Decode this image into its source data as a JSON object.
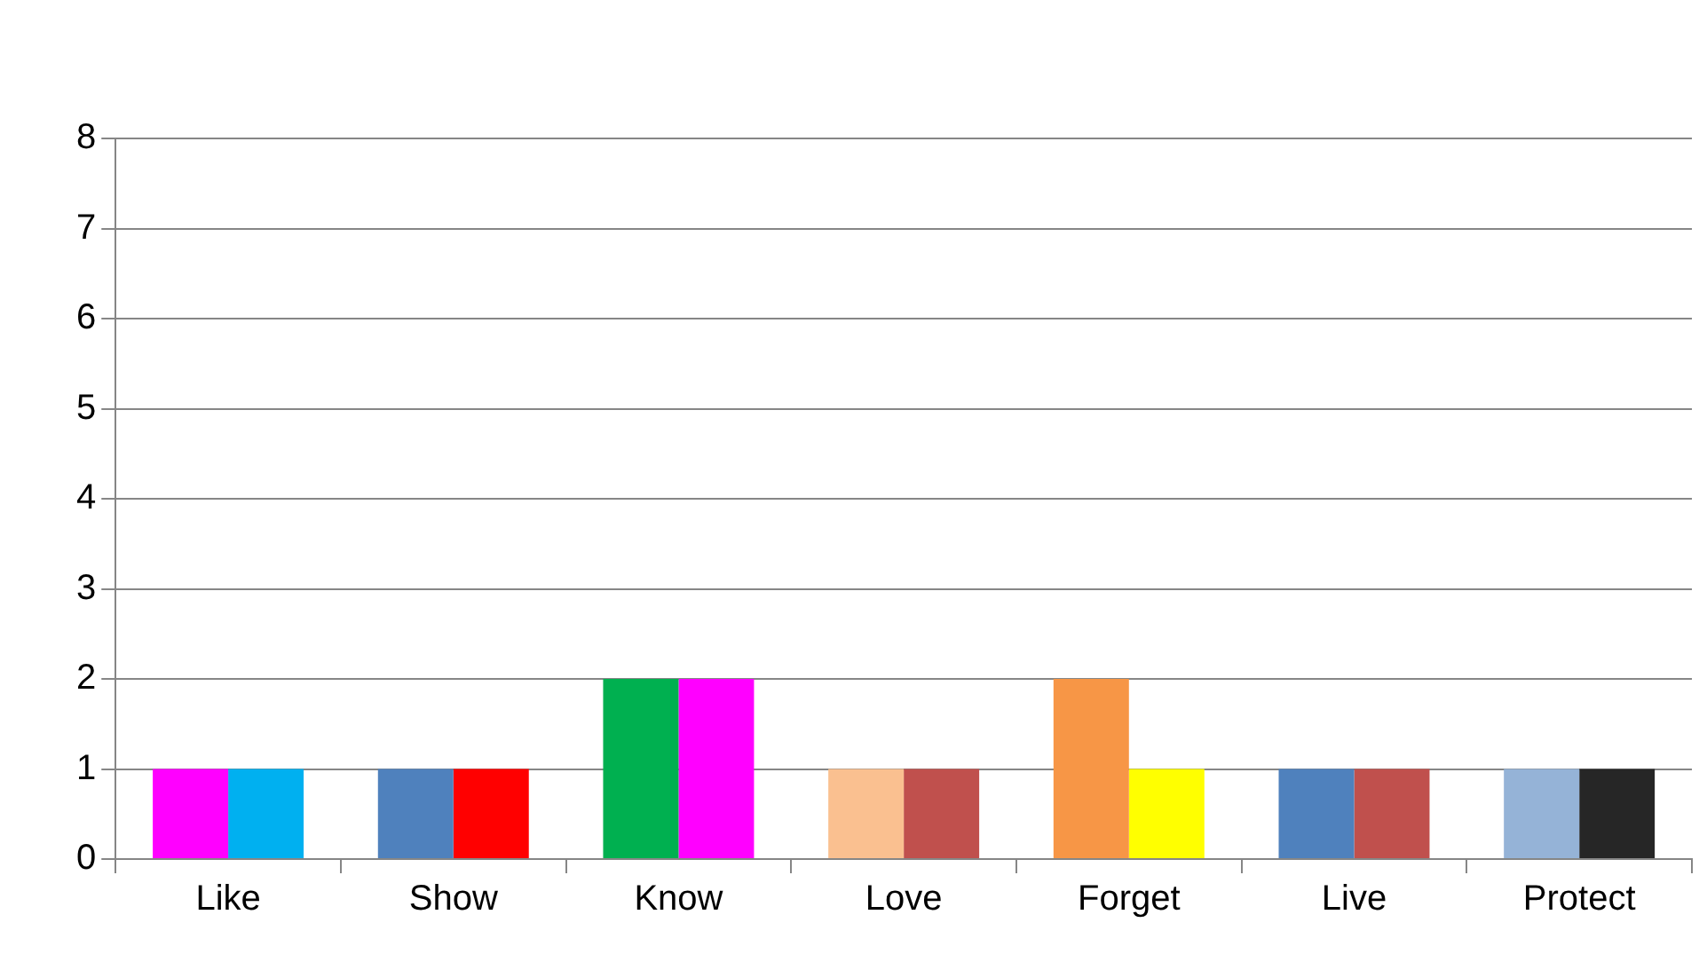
{
  "chart_data": {
    "type": "bar",
    "categories": [
      "Like",
      "Show",
      "Know",
      "Love",
      "Forget",
      "Live",
      "Protect"
    ],
    "series": [
      {
        "colors": [
          "#ff00ff",
          "#4f81bd",
          "#00b050",
          "#fac090",
          "#f79646",
          "#4f81bd",
          "#95b3d7"
        ],
        "values": [
          1,
          1,
          2,
          1,
          2,
          1,
          1
        ]
      },
      {
        "colors": [
          "#00b0f0",
          "#ff0000",
          "#ff00ff",
          "#c0504d",
          "#ffff00",
          "#c0504d",
          "#262626"
        ],
        "values": [
          1,
          1,
          2,
          1,
          1,
          1,
          1
        ]
      }
    ],
    "ylim": [
      0,
      8
    ],
    "yticks": [
      0,
      1,
      2,
      3,
      4,
      5,
      6,
      7,
      8
    ],
    "grid": "y",
    "legend": false
  }
}
